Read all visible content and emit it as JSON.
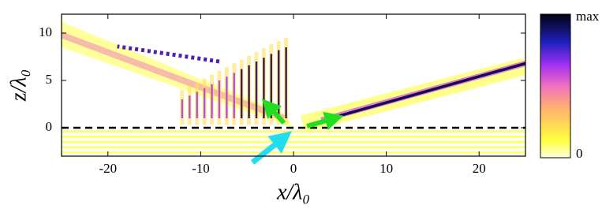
{
  "chart_data": {
    "type": "heatmap",
    "xlabel": "x/λ₀",
    "ylabel": "z/λ₀",
    "xlim": [
      -25,
      25
    ],
    "ylim": [
      -3,
      12
    ],
    "xticks": [
      -20,
      -10,
      0,
      10,
      20
    ],
    "yticks": [
      0,
      5,
      10
    ],
    "colorbar_labels": [
      "max",
      "0"
    ]
  }
}
